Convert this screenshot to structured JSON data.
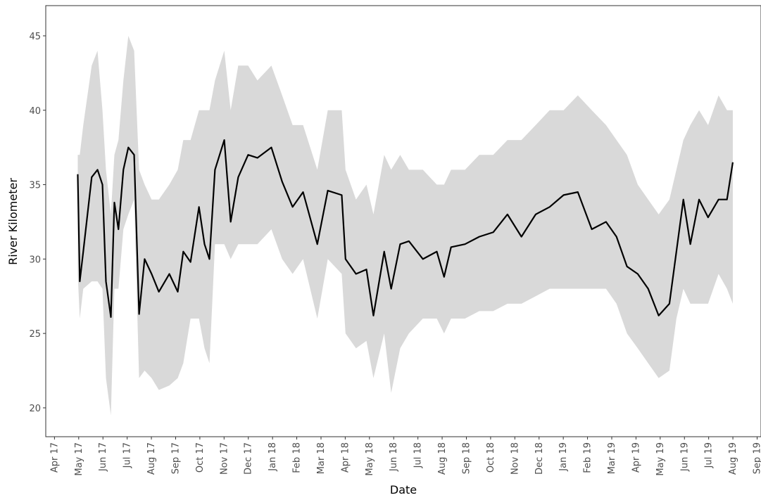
{
  "chart_data": {
    "type": "line",
    "x_label": "Date",
    "y_label": "River Kilometer",
    "x": [
      2017.33,
      2017.337,
      2017.349,
      2017.378,
      2017.398,
      2017.415,
      2017.427,
      2017.444,
      2017.456,
      2017.47,
      2017.487,
      2017.504,
      2017.524,
      2017.541,
      2017.56,
      2017.584,
      2017.609,
      2017.645,
      2017.674,
      2017.693,
      2017.718,
      2017.747,
      2017.766,
      2017.783,
      2017.802,
      2017.834,
      2017.856,
      2017.882,
      2017.916,
      2017.948,
      2017.996,
      2018.033,
      2018.069,
      2018.105,
      2018.154,
      2018.19,
      2018.238,
      2018.251,
      2018.287,
      2018.323,
      2018.347,
      2018.384,
      2018.408,
      2018.439,
      2018.469,
      2018.517,
      2018.565,
      2018.59,
      2018.614,
      2018.662,
      2018.711,
      2018.759,
      2018.808,
      2018.856,
      2018.905,
      2018.953,
      2019.001,
      2019.05,
      2019.098,
      2019.147,
      2019.183,
      2019.219,
      2019.256,
      2019.292,
      2019.328,
      2019.365,
      2019.389,
      2019.413,
      2019.437,
      2019.467,
      2019.498,
      2019.534,
      2019.563,
      2019.583
    ],
    "values": [
      35.7,
      28.5,
      30.5,
      35.5,
      36,
      35,
      28.5,
      26.1,
      33.8,
      32,
      36,
      37.5,
      37,
      26.3,
      30,
      29,
      27.8,
      29,
      27.8,
      30.5,
      29.8,
      33.5,
      31,
      30,
      36,
      38,
      32.5,
      35.5,
      37,
      36.8,
      37.5,
      35.2,
      33.5,
      34.5,
      31,
      34.6,
      34.3,
      30,
      29,
      29.3,
      26.2,
      30.5,
      28,
      31,
      31.2,
      30,
      30.5,
      28.8,
      30.8,
      31,
      31.5,
      31.8,
      33,
      31.5,
      33,
      33.5,
      34.3,
      34.5,
      32,
      32.5,
      31.5,
      29.5,
      29,
      28,
      26.2,
      27,
      30.5,
      34,
      31,
      34,
      32.8,
      34,
      34,
      36.5
    ],
    "lower": [
      29,
      26,
      28,
      28.5,
      28.5,
      28,
      22,
      19.5,
      28,
      28,
      32,
      33,
      34,
      22,
      22.5,
      22,
      21.2,
      21.5,
      22,
      23,
      26,
      26,
      24,
      23,
      31,
      31,
      30,
      31,
      31,
      31,
      32,
      30,
      29,
      30,
      26,
      30,
      29,
      25,
      24,
      24.5,
      22,
      25,
      21,
      24,
      25,
      26,
      26,
      25,
      26,
      26,
      26.5,
      26.5,
      27,
      27,
      27.5,
      28,
      28,
      28,
      28,
      28,
      27,
      25,
      24,
      23,
      22,
      22.5,
      26,
      28,
      27,
      27,
      27,
      29,
      28,
      27
    ],
    "upper": [
      37,
      37,
      39,
      43,
      44,
      40,
      36,
      33,
      37,
      38,
      42,
      45,
      44,
      36,
      35,
      34,
      34,
      35,
      36,
      38,
      38,
      40,
      40,
      40,
      42,
      44,
      40,
      43,
      43,
      42,
      43,
      41,
      39,
      39,
      36,
      40,
      40,
      36,
      34,
      35,
      33,
      37,
      36,
      37,
      36,
      36,
      35,
      35,
      36,
      36,
      37,
      37,
      38,
      38,
      39,
      40,
      40,
      41,
      40,
      39,
      38,
      37,
      35,
      34,
      33,
      34,
      36,
      38,
      39,
      40,
      39,
      41,
      40,
      40
    ],
    "color": "#000000",
    "band_color": "#d9d9d9",
    "xlim": [
      2017.22,
      2019.68
    ],
    "ylim": [
      18.06,
      47.03
    ],
    "xticks": [
      {
        "value": 2017.25,
        "label": "Apr 17"
      },
      {
        "value": 2017.3333,
        "label": "May 17"
      },
      {
        "value": 2017.4167,
        "label": "Jun 17"
      },
      {
        "value": 2017.5,
        "label": "Jul 17"
      },
      {
        "value": 2017.5833,
        "label": "Aug 17"
      },
      {
        "value": 2017.6667,
        "label": "Sep 17"
      },
      {
        "value": 2017.75,
        "label": "Oct 17"
      },
      {
        "value": 2017.8333,
        "label": "Nov 17"
      },
      {
        "value": 2017.9167,
        "label": "Dec 17"
      },
      {
        "value": 2018,
        "label": "Jan 18"
      },
      {
        "value": 2018.0833,
        "label": "Feb 18"
      },
      {
        "value": 2018.1667,
        "label": "Mar 18"
      },
      {
        "value": 2018.25,
        "label": "Apr 18"
      },
      {
        "value": 2018.3333,
        "label": "May 18"
      },
      {
        "value": 2018.4167,
        "label": "Jun 18"
      },
      {
        "value": 2018.5,
        "label": "Jul 18"
      },
      {
        "value": 2018.5833,
        "label": "Aug 18"
      },
      {
        "value": 2018.6667,
        "label": "Sep 18"
      },
      {
        "value": 2018.75,
        "label": "Oct 18"
      },
      {
        "value": 2018.8333,
        "label": "Nov 18"
      },
      {
        "value": 2018.9167,
        "label": "Dec 18"
      },
      {
        "value": 2019,
        "label": "Jan 19"
      },
      {
        "value": 2019.0833,
        "label": "Feb 19"
      },
      {
        "value": 2019.1667,
        "label": "Mar 19"
      },
      {
        "value": 2019.25,
        "label": "Apr 19"
      },
      {
        "value": 2019.3333,
        "label": "May 19"
      },
      {
        "value": 2019.4167,
        "label": "Jun 19"
      },
      {
        "value": 2019.5,
        "label": "Jul 19"
      },
      {
        "value": 2019.5833,
        "label": "Aug 19"
      },
      {
        "value": 2019.6667,
        "label": "Sep 19"
      }
    ],
    "yticks": [
      20,
      25,
      30,
      35,
      40,
      45
    ],
    "grid": false
  }
}
